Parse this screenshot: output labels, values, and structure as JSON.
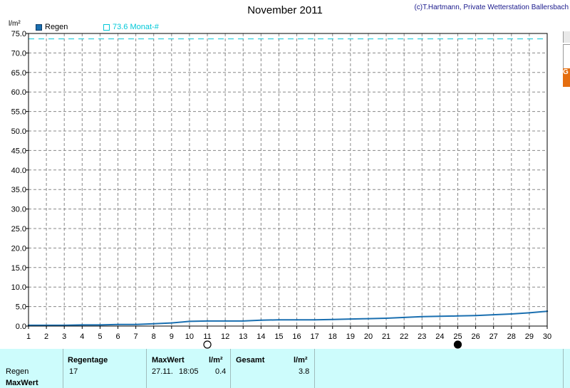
{
  "chart_data": {
    "type": "line",
    "title": "November 2011",
    "copyright": "(c)T.Hartmann, Private Wetterstation Ballersbach",
    "ylabel": "l/m²",
    "xlim": [
      1,
      30
    ],
    "ylim": [
      0,
      75
    ],
    "y_ticks": [
      "0.0",
      "5.0",
      "10.0",
      "15.0",
      "20.0",
      "25.0",
      "30.0",
      "35.0",
      "40.0",
      "45.0",
      "50.0",
      "55.0",
      "60.0",
      "65.0",
      "70.0",
      "75.0"
    ],
    "x_ticks": [
      "1",
      "2",
      "3",
      "4",
      "5",
      "6",
      "7",
      "8",
      "9",
      "10",
      "11",
      "12",
      "13",
      "14",
      "15",
      "16",
      "17",
      "18",
      "19",
      "20",
      "21",
      "22",
      "23",
      "24",
      "25",
      "26",
      "27",
      "28",
      "29",
      "30"
    ],
    "grid": true,
    "series": [
      {
        "name": "Regen",
        "color": "#1a6fb0",
        "x": [
          1,
          2,
          3,
          4,
          5,
          6,
          7,
          8,
          9,
          10,
          11,
          12,
          13,
          14,
          15,
          16,
          17,
          18,
          19,
          20,
          21,
          22,
          23,
          24,
          25,
          26,
          27,
          28,
          29,
          30
        ],
        "y": [
          0.2,
          0.2,
          0.2,
          0.3,
          0.3,
          0.4,
          0.4,
          0.6,
          0.8,
          1.2,
          1.3,
          1.3,
          1.3,
          1.5,
          1.6,
          1.6,
          1.6,
          1.7,
          1.8,
          1.9,
          2.0,
          2.2,
          2.4,
          2.5,
          2.6,
          2.7,
          2.9,
          3.1,
          3.4,
          3.8
        ]
      }
    ],
    "reference_line": {
      "label": "73.6 Monat-#",
      "value": 73.6,
      "color": "#00c8d8"
    },
    "moon_markers": [
      {
        "day": 11,
        "phase": "full-moon"
      },
      {
        "day": 25,
        "phase": "new-moon"
      }
    ]
  },
  "sidebar": {
    "tab_label": "G"
  },
  "summary": {
    "row_labels": [
      "Regen",
      "MaxWert"
    ],
    "regentage": {
      "header": "Regentage",
      "value": "17"
    },
    "maxwert": {
      "header": "MaxWert",
      "unit": "l/m²",
      "date": "27.11.",
      "time": "18:05",
      "value": "0.4"
    },
    "gesamt": {
      "header": "Gesamt",
      "unit": "l/m²",
      "value": "3.8"
    }
  }
}
